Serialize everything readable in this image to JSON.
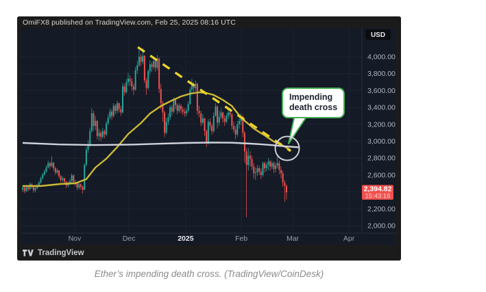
{
  "header": {
    "attribution": "OmiFX8 published on TradingView.com, Feb 25, 2025 08:16 UTC"
  },
  "footer": {
    "brand": "TradingView"
  },
  "page": {
    "caption": "Ether’s impending death cross. (TradingView/CoinDesk)"
  },
  "annotation": {
    "line1": "Impending",
    "line2": "death cross"
  },
  "price_badge": {
    "price_label": "2,394.82",
    "time_label": "15:43:16"
  },
  "axis": {
    "currency_label": "USD",
    "price_ticks": [
      {
        "price": 4000,
        "label": "4,000.00"
      },
      {
        "price": 3800,
        "label": "3,800.00"
      },
      {
        "price": 3600,
        "label": "3,600.00"
      },
      {
        "price": 3400,
        "label": "3,400.00"
      },
      {
        "price": 3200,
        "label": "3,200.00"
      },
      {
        "price": 3000,
        "label": "3,000.00"
      },
      {
        "price": 2800,
        "label": "2,800.00"
      },
      {
        "price": 2600,
        "label": "2,600.00"
      },
      {
        "price": 2400,
        "label": "2,400.00",
        "hidden_behind_badge": true
      },
      {
        "price": 2200,
        "label": "2,200.00"
      },
      {
        "price": 2000,
        "label": "2,000.00"
      }
    ],
    "time_ticks": [
      {
        "d": 28.6,
        "label": "Nov",
        "bold": false
      },
      {
        "d": 58.4,
        "label": "Dec",
        "bold": false
      },
      {
        "d": 89.6,
        "label": "2025",
        "bold": true
      },
      {
        "d": 120.2,
        "label": "Feb",
        "bold": false
      },
      {
        "d": 148.4,
        "label": "Mar",
        "bold": false
      },
      {
        "d": 179.3,
        "label": "Apr",
        "bold": false
      }
    ]
  },
  "colors": {
    "background": "#141a26",
    "frame": "#1b1b1b",
    "grid": "#1e2433",
    "axis_separator": "#2a2e39",
    "tick_text": "#b2b6bf",
    "tick_text_bold": "#e8e9ed",
    "up": "#2aa79a",
    "down": "#ef5350",
    "ma_fast": "#cdba35",
    "ma_slow": "#d1d4dc",
    "trendline": "#ecd22c",
    "badge": "#f0504e",
    "circle": "#cdd0d8",
    "accent_green": "#44b155",
    "currency_badge_bg": "#0c0d10"
  },
  "chart_data": {
    "type": "candlestick",
    "title": "Ether price in USD with moving averages and descending trendline",
    "x_axis_labels": [
      "Nov",
      "Dec",
      "2025",
      "Feb",
      "Mar",
      "Apr"
    ],
    "y_range_visible": [
      1950,
      4180
    ],
    "last_price": 2394.82,
    "last_price_time": "15:43:16",
    "first_open": 2430,
    "candles_format": [
      "close",
      "high",
      "low"
    ],
    "candles": [
      [
        2450,
        2480,
        2400
      ],
      [
        2410,
        2465,
        2385
      ],
      [
        2455,
        2470,
        2395
      ],
      [
        2430,
        2470,
        2405
      ],
      [
        2490,
        2510,
        2420
      ],
      [
        2460,
        2505,
        2435
      ],
      [
        2420,
        2475,
        2390
      ],
      [
        2445,
        2465,
        2400
      ],
      [
        2475,
        2495,
        2430
      ],
      [
        2510,
        2530,
        2460
      ],
      [
        2560,
        2580,
        2495
      ],
      [
        2605,
        2625,
        2545
      ],
      [
        2640,
        2665,
        2590
      ],
      [
        2690,
        2715,
        2625
      ],
      [
        2740,
        2770,
        2680
      ],
      [
        2705,
        2760,
        2670
      ],
      [
        2745,
        2820,
        2690
      ],
      [
        2680,
        2755,
        2650
      ],
      [
        2630,
        2700,
        2605
      ],
      [
        2655,
        2680,
        2610
      ],
      [
        2585,
        2650,
        2560
      ],
      [
        2540,
        2600,
        2510
      ],
      [
        2560,
        2585,
        2520
      ],
      [
        2520,
        2570,
        2490
      ],
      [
        2475,
        2530,
        2445
      ],
      [
        2505,
        2525,
        2450
      ],
      [
        2530,
        2555,
        2480
      ],
      [
        2595,
        2620,
        2510
      ],
      [
        2515,
        2605,
        2490
      ],
      [
        2510,
        2545,
        2470
      ],
      [
        2450,
        2520,
        2420
      ],
      [
        2490,
        2515,
        2430
      ],
      [
        2460,
        2500,
        2425
      ],
      [
        2425,
        2475,
        2380
      ],
      [
        2720,
        2740,
        2420
      ],
      [
        2900,
        2930,
        2700
      ],
      [
        2960,
        3010,
        2860
      ],
      [
        3120,
        3160,
        2930
      ],
      [
        3330,
        3390,
        3100
      ],
      [
        3180,
        3360,
        3120
      ],
      [
        3240,
        3300,
        3130
      ],
      [
        3060,
        3250,
        3020
      ],
      [
        3100,
        3150,
        3010
      ],
      [
        3050,
        3130,
        3000
      ],
      [
        3120,
        3160,
        3030
      ],
      [
        3080,
        3140,
        3035
      ],
      [
        3210,
        3240,
        3060
      ],
      [
        3280,
        3320,
        3190
      ],
      [
        3350,
        3390,
        3260
      ],
      [
        3300,
        3380,
        3250
      ],
      [
        3420,
        3450,
        3280
      ],
      [
        3360,
        3440,
        3320
      ],
      [
        3450,
        3480,
        3330
      ],
      [
        3380,
        3460,
        3340
      ],
      [
        3340,
        3420,
        3300
      ],
      [
        3650,
        3690,
        3330
      ],
      [
        3580,
        3680,
        3540
      ],
      [
        3700,
        3740,
        3560
      ],
      [
        3740,
        3810,
        3660
      ],
      [
        3710,
        3780,
        3650
      ],
      [
        3650,
        3750,
        3600
      ],
      [
        3610,
        3680,
        3550
      ],
      [
        3840,
        3880,
        3600
      ],
      [
        3900,
        3950,
        3800
      ],
      [
        4000,
        4080,
        3880
      ],
      [
        3940,
        4030,
        3890
      ],
      [
        4010,
        4100,
        3910
      ],
      [
        3720,
        4020,
        3690
      ],
      [
        3630,
        3750,
        3550
      ],
      [
        3830,
        3850,
        3610
      ],
      [
        3910,
        3960,
        3790
      ],
      [
        3880,
        3940,
        3820
      ],
      [
        3950,
        3990,
        3850
      ],
      [
        3870,
        3960,
        3820
      ],
      [
        3980,
        4020,
        3840
      ],
      [
        3620,
        3990,
        3570
      ],
      [
        3450,
        3680,
        3380
      ],
      [
        3340,
        3480,
        3230
      ],
      [
        3100,
        3360,
        3050
      ],
      [
        3230,
        3280,
        3080
      ],
      [
        3280,
        3330,
        3190
      ],
      [
        3400,
        3430,
        3250
      ],
      [
        3350,
        3430,
        3300
      ],
      [
        3490,
        3520,
        3330
      ],
      [
        3430,
        3510,
        3380
      ],
      [
        3360,
        3450,
        3320
      ],
      [
        3420,
        3450,
        3340
      ],
      [
        3380,
        3440,
        3330
      ],
      [
        3350,
        3410,
        3310
      ],
      [
        3330,
        3390,
        3290
      ],
      [
        3360,
        3390,
        3300
      ],
      [
        3440,
        3470,
        3340
      ],
      [
        3610,
        3640,
        3430
      ],
      [
        3660,
        3740,
        3570
      ],
      [
        3630,
        3700,
        3580
      ],
      [
        3680,
        3720,
        3590
      ],
      [
        3360,
        3690,
        3310
      ],
      [
        3330,
        3420,
        3280
      ],
      [
        3220,
        3360,
        3180
      ],
      [
        3270,
        3320,
        3200
      ],
      [
        3120,
        3280,
        3060
      ],
      [
        2980,
        3140,
        2930
      ],
      [
        3230,
        3260,
        2960
      ],
      [
        3180,
        3270,
        3130
      ],
      [
        3120,
        3210,
        3080
      ],
      [
        3300,
        3340,
        3100
      ],
      [
        3410,
        3450,
        3290
      ],
      [
        3220,
        3430,
        3150
      ],
      [
        3290,
        3360,
        3180
      ],
      [
        3340,
        3390,
        3260
      ],
      [
        3270,
        3350,
        3220
      ],
      [
        3230,
        3310,
        3180
      ],
      [
        3300,
        3330,
        3210
      ],
      [
        3340,
        3370,
        3260
      ],
      [
        3320,
        3390,
        3280
      ],
      [
        3180,
        3330,
        3140
      ],
      [
        3140,
        3230,
        3100
      ],
      [
        3080,
        3180,
        3020
      ],
      [
        3200,
        3240,
        3050
      ],
      [
        3240,
        3290,
        3150
      ],
      [
        3290,
        3330,
        3190
      ],
      [
        3100,
        3310,
        3050
      ],
      [
        2880,
        3120,
        2750
      ],
      [
        2720,
        2920,
        2100
      ],
      [
        2830,
        2920,
        2650
      ],
      [
        2790,
        2880,
        2700
      ],
      [
        2700,
        2830,
        2660
      ],
      [
        2620,
        2740,
        2560
      ],
      [
        2630,
        2690,
        2540
      ],
      [
        2680,
        2720,
        2590
      ],
      [
        2640,
        2710,
        2600
      ],
      [
        2600,
        2680,
        2550
      ],
      [
        2740,
        2760,
        2580
      ],
      [
        2680,
        2760,
        2630
      ],
      [
        2720,
        2750,
        2640
      ],
      [
        2760,
        2800,
        2660
      ],
      [
        2700,
        2780,
        2650
      ],
      [
        2740,
        2770,
        2670
      ],
      [
        2670,
        2760,
        2620
      ],
      [
        2710,
        2750,
        2630
      ],
      [
        2740,
        2830,
        2680
      ],
      [
        2660,
        2770,
        2610
      ],
      [
        2620,
        2700,
        2560
      ],
      [
        2510,
        2650,
        2460
      ],
      [
        2470,
        2540,
        2280
      ],
      [
        2394.82,
        2490,
        2310
      ]
    ],
    "overlays": [
      {
        "name": "fast moving average (yellow)",
        "style": "solid",
        "points": [
          [
            0,
            2470
          ],
          [
            10,
            2470
          ],
          [
            21,
            2494
          ],
          [
            29,
            2502
          ],
          [
            35,
            2551
          ],
          [
            40,
            2688
          ],
          [
            46,
            2793
          ],
          [
            52,
            2931
          ],
          [
            58,
            3085
          ],
          [
            65,
            3215
          ],
          [
            70,
            3328
          ],
          [
            76,
            3417
          ],
          [
            82,
            3482
          ],
          [
            87,
            3530
          ],
          [
            92,
            3563
          ],
          [
            97,
            3579
          ],
          [
            101,
            3571
          ],
          [
            105,
            3547
          ],
          [
            110,
            3490
          ],
          [
            115,
            3417
          ],
          [
            120,
            3279
          ],
          [
            127,
            3150
          ],
          [
            133,
            3069
          ],
          [
            138,
            2996
          ],
          [
            143,
            2947
          ],
          [
            147,
            2899
          ]
        ]
      },
      {
        "name": "slow moving average (white)",
        "style": "solid",
        "points": [
          [
            0,
            2980
          ],
          [
            20,
            2962
          ],
          [
            40,
            2955
          ],
          [
            60,
            2960
          ],
          [
            75,
            2970
          ],
          [
            90,
            2980
          ],
          [
            105,
            2985
          ],
          [
            115,
            2982
          ],
          [
            125,
            2972
          ],
          [
            132,
            2962
          ],
          [
            138,
            2952
          ],
          [
            144,
            2940
          ],
          [
            152,
            2928
          ]
        ]
      },
      {
        "name": "descending trendline (dashed yellow)",
        "style": "dashed",
        "points": [
          [
            63.3,
            4113
          ],
          [
            147.3,
            2883
          ]
        ]
      }
    ],
    "annotation_target": {
      "d": 145.4,
      "price": 2915,
      "meaning": "50/200-day MA impending death cross"
    }
  }
}
